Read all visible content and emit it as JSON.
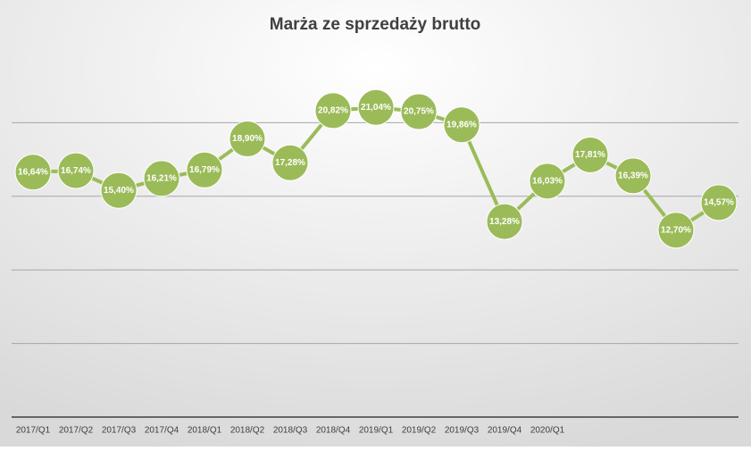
{
  "chart_data": {
    "type": "line",
    "title": "Marża ze sprzedaży brutto",
    "categories": [
      "2017/Q1",
      "2017/Q2",
      "2017/Q3",
      "2017/Q4",
      "2018/Q1",
      "2018/Q2",
      "2018/Q3",
      "2018/Q4",
      "2019/Q1",
      "2019/Q2",
      "2019/Q3",
      "2019/Q4",
      "2020/Q1",
      null,
      null,
      null,
      null
    ],
    "series": [
      {
        "name": null,
        "color": "#9bbb59",
        "values": [
          16.64,
          16.74,
          15.4,
          16.21,
          16.79,
          18.9,
          17.28,
          20.82,
          21.04,
          20.75,
          19.86,
          13.28,
          16.03,
          17.81,
          16.39,
          12.7,
          14.57
        ],
        "value_labels": [
          "16,64%",
          "16,74%",
          "15,40%",
          "16,21%",
          "16,79%",
          "18,90%",
          "17,28%",
          "20,82%",
          "21,04%",
          "20,75%",
          "19,86%",
          "13,28%",
          "16,03%",
          "17,81%",
          "16,39%",
          "12,70%",
          "14,57%"
        ]
      }
    ],
    "ylim": [
      0,
      25
    ],
    "yticks": [
      0,
      5,
      10,
      15,
      20
    ],
    "grid": true
  }
}
